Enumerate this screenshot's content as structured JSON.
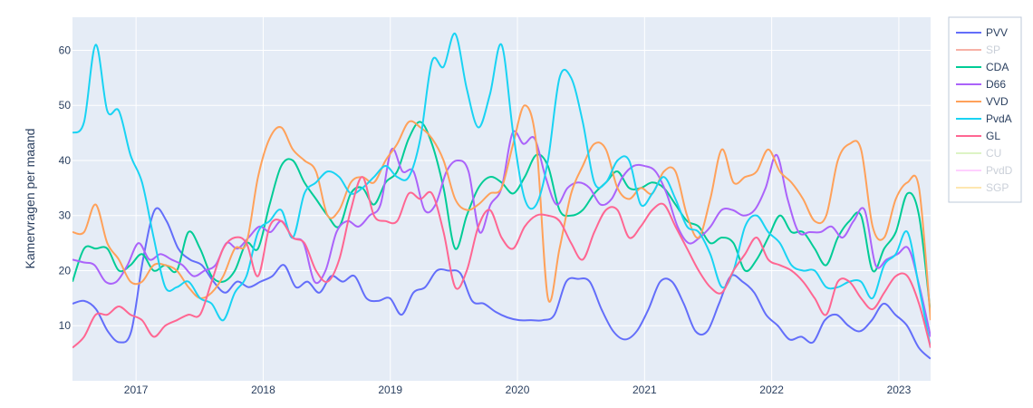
{
  "chart_data": {
    "type": "line",
    "title": "",
    "xlabel": "",
    "ylabel": "Kamervragen per maand",
    "x_start": "2016-06",
    "x_end": "2023-04",
    "xlim": [
      2016.5,
      2023.25
    ],
    "ylim": [
      0,
      66
    ],
    "x_ticks": [
      2017,
      2018,
      2019,
      2020,
      2021,
      2022,
      2023
    ],
    "x_tick_labels": [
      "2017",
      "2018",
      "2019",
      "2020",
      "2021",
      "2022",
      "2023"
    ],
    "y_ticks": [
      10,
      20,
      30,
      40,
      50,
      60
    ],
    "y_tick_labels": [
      "10",
      "20",
      "30",
      "40",
      "50",
      "60"
    ],
    "grid": true,
    "legend_position": "top-right",
    "plot_bg": "#e5ecf6",
    "series": [
      {
        "name": "PVV",
        "color": "#636efa",
        "visible": true,
        "values": [
          14,
          14.5,
          13,
          9,
          7,
          9,
          22,
          31,
          29,
          24,
          22,
          21,
          18,
          16,
          18,
          17,
          18,
          19,
          21,
          17,
          18,
          16,
          19,
          18,
          19,
          15,
          14.5,
          15,
          12,
          16,
          17,
          20,
          20,
          19.5,
          14.5,
          14,
          12.5,
          11.5,
          11,
          11,
          11,
          12,
          18,
          18.5,
          18,
          13,
          9,
          7.5,
          9,
          13,
          18,
          18,
          14,
          9,
          9,
          14,
          19,
          18,
          16,
          12,
          10,
          7.5,
          8,
          7,
          11,
          12,
          10,
          9,
          11,
          14,
          12,
          10,
          6,
          4
        ]
      },
      {
        "name": "SP",
        "color": "#ef553b",
        "visible": false,
        "values": []
      },
      {
        "name": "CDA",
        "color": "#00cc96",
        "visible": true,
        "values": [
          18,
          24,
          24,
          24,
          20,
          21,
          23,
          20,
          21,
          20,
          27,
          24,
          19,
          18,
          20,
          25,
          24,
          32,
          39,
          40,
          36,
          33,
          30,
          28,
          34,
          35,
          32,
          36,
          38,
          44,
          47,
          43,
          35,
          24,
          30,
          35,
          37,
          36,
          34,
          37,
          41,
          39,
          31,
          30,
          31,
          34,
          36,
          38,
          35,
          35,
          36,
          35,
          32,
          29,
          28,
          25,
          26,
          25,
          20,
          22,
          26,
          30,
          27,
          27,
          24,
          21,
          26,
          29,
          30,
          20,
          24,
          27,
          34,
          30,
          12
        ]
      },
      {
        "name": "D66",
        "color": "#ab63fa",
        "visible": true,
        "values": [
          22,
          21.5,
          21,
          18,
          18,
          21,
          25,
          22,
          23,
          22,
          21,
          19,
          20,
          21,
          25,
          24,
          26,
          28,
          27,
          29,
          26,
          25,
          18,
          20,
          27,
          29,
          28,
          30,
          32,
          42,
          38,
          38,
          31,
          32,
          38,
          40,
          38,
          27,
          32,
          35,
          45,
          43,
          44,
          37,
          32,
          35,
          36,
          35,
          32,
          33,
          37,
          39,
          39,
          38,
          34,
          28,
          25,
          26,
          28,
          31,
          31,
          30,
          31,
          35,
          41,
          33,
          27,
          27,
          27,
          28,
          26,
          29,
          31,
          21,
          22,
          23,
          24,
          17,
          8
        ]
      },
      {
        "name": "VVD",
        "color": "#ffa15a",
        "visible": true,
        "values": [
          27,
          27,
          32,
          25,
          22,
          18,
          18,
          21,
          21,
          20,
          17,
          15,
          16,
          19,
          24,
          25,
          37,
          44,
          46,
          42,
          40,
          38,
          30,
          31,
          36,
          37,
          36,
          40,
          43,
          47,
          46,
          44,
          40,
          33,
          31,
          32,
          34,
          35,
          43,
          50,
          43,
          15,
          24,
          34,
          39,
          43,
          42,
          35,
          33,
          35,
          34,
          38,
          38,
          30,
          26,
          33,
          42,
          36,
          37,
          38,
          42,
          38,
          36,
          33,
          29,
          30,
          40,
          43,
          42,
          28,
          26,
          33,
          36,
          35,
          11
        ]
      },
      {
        "name": "PvdA",
        "color": "#19d3f3",
        "visible": true,
        "values": [
          45,
          47,
          61,
          49,
          49,
          41,
          36,
          26,
          17,
          17,
          18,
          15,
          14,
          11,
          16,
          19,
          27,
          29,
          31,
          26,
          34,
          36,
          38,
          37,
          34,
          35,
          37,
          39,
          37,
          37,
          44,
          58,
          57,
          63,
          53,
          46,
          52,
          61,
          45,
          33,
          32,
          40,
          55,
          55,
          47,
          36,
          36,
          40,
          40,
          32,
          34,
          37,
          33,
          28,
          27,
          23,
          17,
          20,
          28,
          30,
          27,
          25,
          21,
          20,
          20,
          17,
          17,
          18,
          18,
          15,
          21,
          23,
          27,
          17,
          6
        ]
      },
      {
        "name": "GL",
        "color": "#ff6692",
        "visible": true,
        "values": [
          6,
          8,
          12,
          12,
          13.5,
          12,
          11,
          8,
          10,
          11,
          12,
          12,
          18,
          24,
          26,
          25,
          19,
          28,
          29,
          26,
          25,
          20,
          18,
          22,
          31,
          37,
          30,
          29,
          29,
          34,
          33,
          34,
          27,
          17,
          20,
          28,
          31,
          26,
          24,
          28,
          30,
          30,
          29,
          25,
          22,
          27,
          31,
          31,
          26,
          28,
          31,
          32,
          28,
          24,
          20,
          17,
          16,
          20,
          23,
          26,
          22,
          21,
          20,
          18,
          15,
          12,
          18,
          18,
          15,
          13,
          16,
          19,
          19,
          14,
          6
        ]
      },
      {
        "name": "CU",
        "color": "#b6e880",
        "visible": false,
        "values": []
      },
      {
        "name": "PvdD",
        "color": "#ff97ff",
        "visible": false,
        "values": []
      },
      {
        "name": "SGP",
        "color": "#fecb52",
        "visible": false,
        "values": []
      }
    ]
  }
}
